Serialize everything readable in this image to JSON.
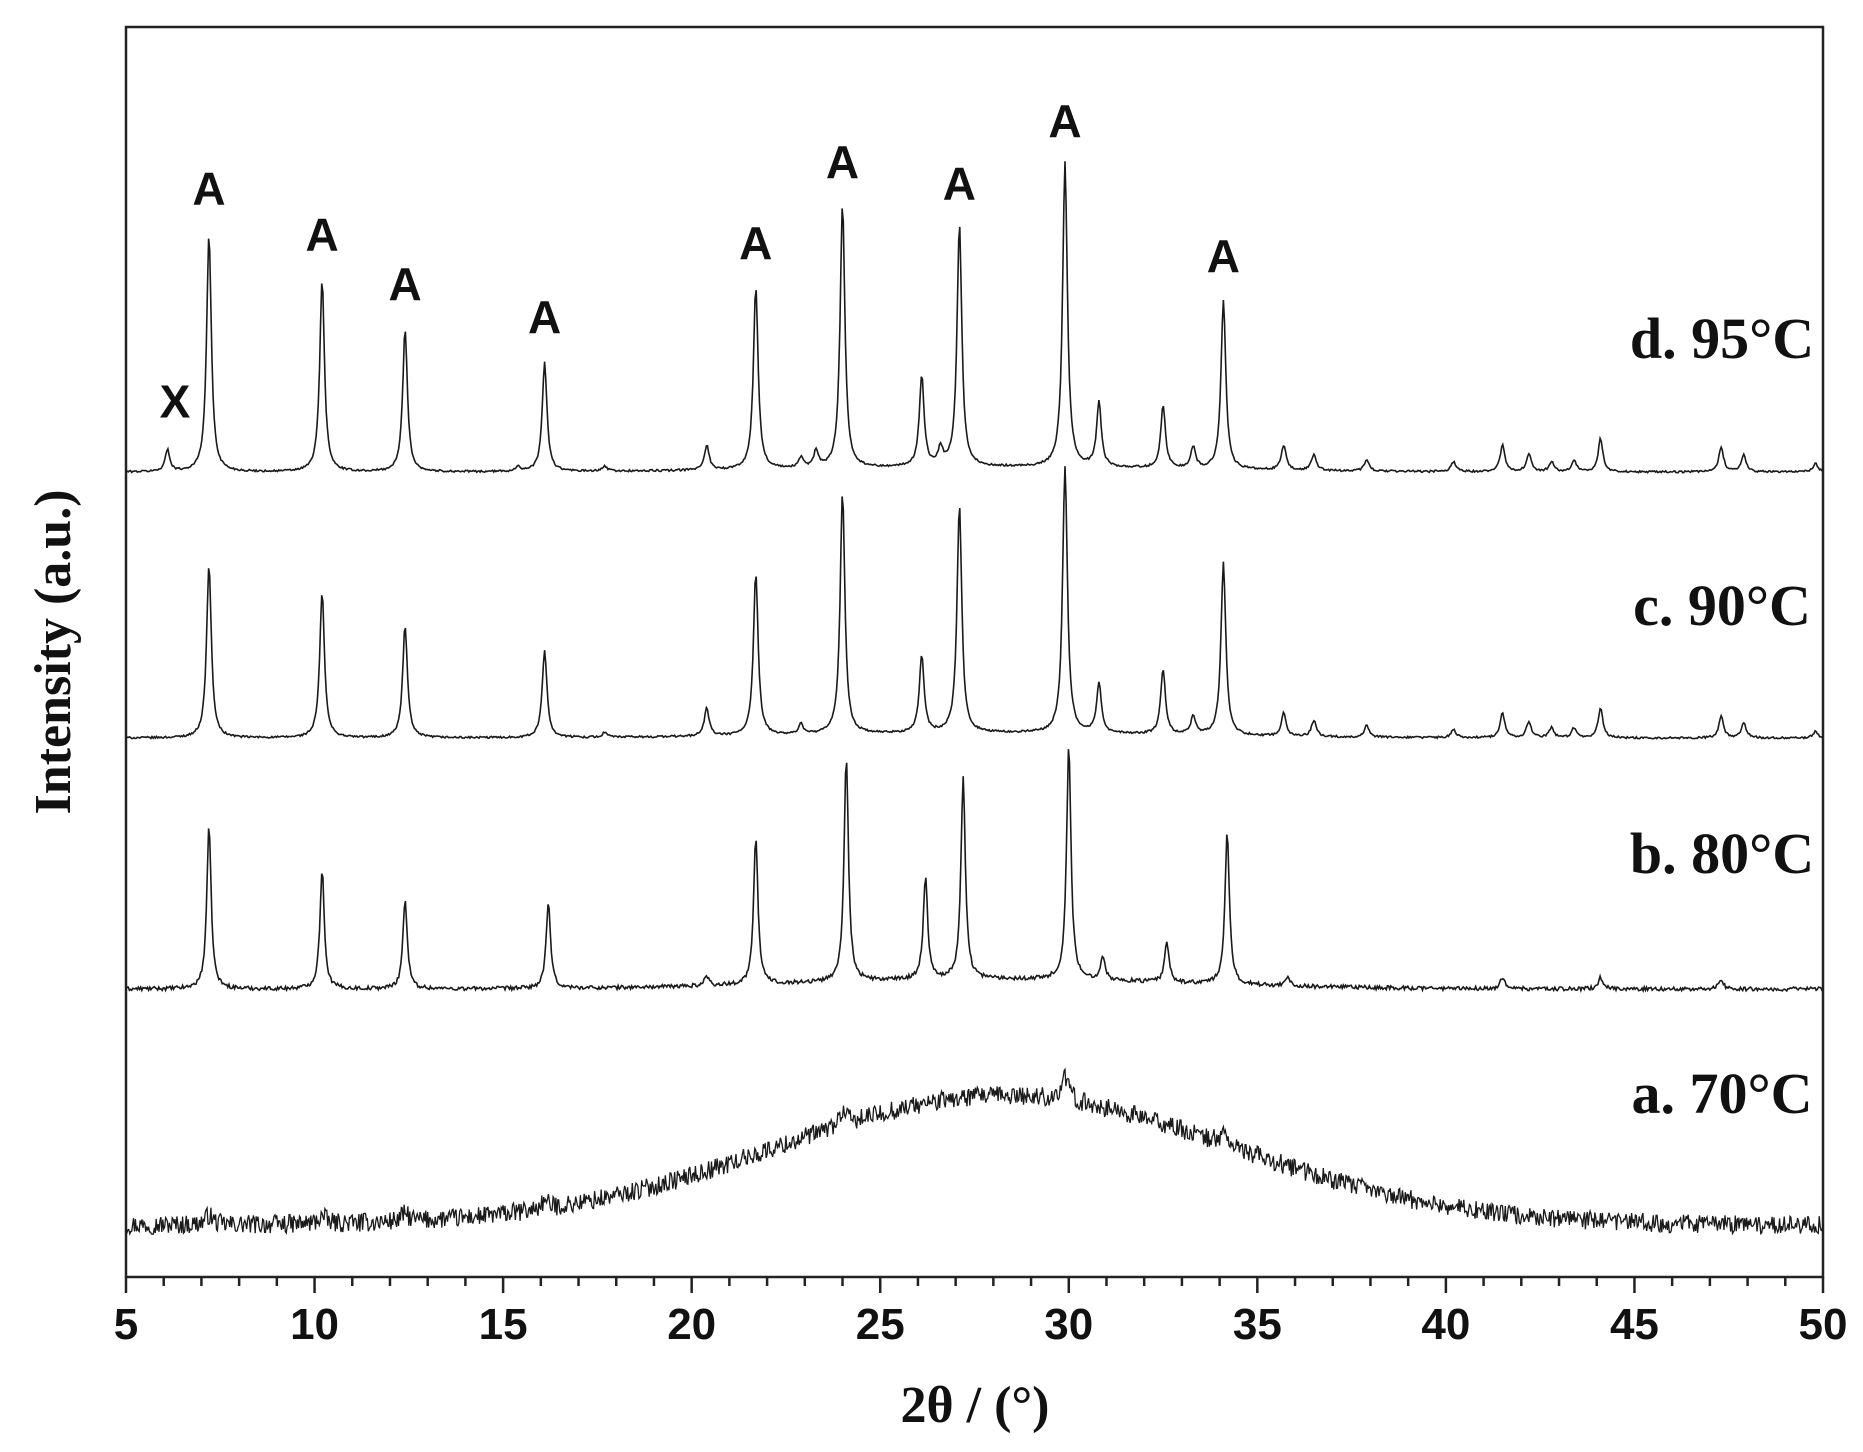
{
  "chart_data": {
    "type": "line",
    "xlabel": "2θ / (°)",
    "ylabel": "Intensity (a.u.)",
    "xlim": [
      5,
      50
    ],
    "xticks": [
      "5",
      "10",
      "15",
      "20",
      "25",
      "30",
      "35",
      "40",
      "45",
      "50"
    ],
    "x_minor_step": 1,
    "grid": false,
    "legend": "none",
    "series": [
      {
        "name": "a. 70°C",
        "kind": "amorphous",
        "baseline": 0.0,
        "hump": {
          "center": 28.3,
          "width": 6.0,
          "height": 0.68
        },
        "noise": 0.05,
        "peaks": [
          {
            "x": 7.2,
            "h": 0.05
          },
          {
            "x": 10.2,
            "h": 0.04
          },
          {
            "x": 12.4,
            "h": 0.04
          },
          {
            "x": 16.1,
            "h": 0.04
          },
          {
            "x": 24.0,
            "h": 0.07
          },
          {
            "x": 29.9,
            "h": 0.12
          },
          {
            "x": 34.1,
            "h": 0.06
          }
        ]
      },
      {
        "name": "b. 80°C",
        "kind": "crystalline",
        "baseline": 0.0,
        "hump": {
          "center": 28.0,
          "width": 5.0,
          "height": 0.06
        },
        "noise": 0.012,
        "peaks": [
          {
            "x": 7.2,
            "h": 0.98
          },
          {
            "x": 10.2,
            "h": 0.72
          },
          {
            "x": 12.4,
            "h": 0.54
          },
          {
            "x": 16.2,
            "h": 0.52
          },
          {
            "x": 20.4,
            "h": 0.06
          },
          {
            "x": 21.7,
            "h": 0.88
          },
          {
            "x": 24.1,
            "h": 1.36
          },
          {
            "x": 26.2,
            "h": 0.62
          },
          {
            "x": 27.2,
            "h": 1.22
          },
          {
            "x": 30.0,
            "h": 1.42
          },
          {
            "x": 30.9,
            "h": 0.15
          },
          {
            "x": 32.6,
            "h": 0.24
          },
          {
            "x": 34.2,
            "h": 0.92
          },
          {
            "x": 35.8,
            "h": 0.06
          },
          {
            "x": 41.5,
            "h": 0.07
          },
          {
            "x": 44.1,
            "h": 0.07
          },
          {
            "x": 47.3,
            "h": 0.06
          }
        ]
      },
      {
        "name": "c. 90°C",
        "kind": "crystalline",
        "baseline": 0.0,
        "hump": {
          "center": 28.0,
          "width": 5.0,
          "height": 0.03
        },
        "noise": 0.006,
        "peaks": [
          {
            "x": 7.2,
            "h": 1.05
          },
          {
            "x": 10.2,
            "h": 0.88
          },
          {
            "x": 12.4,
            "h": 0.68
          },
          {
            "x": 16.1,
            "h": 0.53
          },
          {
            "x": 17.7,
            "h": 0.03
          },
          {
            "x": 20.4,
            "h": 0.17
          },
          {
            "x": 21.7,
            "h": 0.98
          },
          {
            "x": 22.9,
            "h": 0.06
          },
          {
            "x": 24.0,
            "h": 1.46
          },
          {
            "x": 26.1,
            "h": 0.47
          },
          {
            "x": 27.1,
            "h": 1.38
          },
          {
            "x": 29.9,
            "h": 1.62
          },
          {
            "x": 30.8,
            "h": 0.3
          },
          {
            "x": 32.5,
            "h": 0.39
          },
          {
            "x": 33.3,
            "h": 0.11
          },
          {
            "x": 34.1,
            "h": 1.05
          },
          {
            "x": 35.7,
            "h": 0.14
          },
          {
            "x": 36.5,
            "h": 0.1
          },
          {
            "x": 37.9,
            "h": 0.07
          },
          {
            "x": 40.2,
            "h": 0.05
          },
          {
            "x": 41.5,
            "h": 0.15
          },
          {
            "x": 42.2,
            "h": 0.1
          },
          {
            "x": 42.8,
            "h": 0.06
          },
          {
            "x": 43.4,
            "h": 0.06
          },
          {
            "x": 44.1,
            "h": 0.18
          },
          {
            "x": 47.3,
            "h": 0.13
          },
          {
            "x": 47.9,
            "h": 0.09
          },
          {
            "x": 49.8,
            "h": 0.04
          }
        ]
      },
      {
        "name": "d. 95°C",
        "kind": "crystalline",
        "baseline": 0.0,
        "hump": {
          "center": 28.0,
          "width": 5.0,
          "height": 0.03
        },
        "noise": 0.006,
        "peaks": [
          {
            "x": 6.1,
            "h": 0.13
          },
          {
            "x": 7.2,
            "h": 1.44
          },
          {
            "x": 10.2,
            "h": 1.16
          },
          {
            "x": 12.4,
            "h": 0.86
          },
          {
            "x": 15.4,
            "h": 0.03
          },
          {
            "x": 16.1,
            "h": 0.66
          },
          {
            "x": 17.7,
            "h": 0.03
          },
          {
            "x": 20.4,
            "h": 0.15
          },
          {
            "x": 21.7,
            "h": 1.11
          },
          {
            "x": 22.9,
            "h": 0.06
          },
          {
            "x": 23.3,
            "h": 0.1
          },
          {
            "x": 24.0,
            "h": 1.6
          },
          {
            "x": 26.1,
            "h": 0.55
          },
          {
            "x": 26.6,
            "h": 0.1
          },
          {
            "x": 27.1,
            "h": 1.47
          },
          {
            "x": 29.9,
            "h": 1.85
          },
          {
            "x": 30.8,
            "h": 0.39
          },
          {
            "x": 32.5,
            "h": 0.38
          },
          {
            "x": 33.3,
            "h": 0.13
          },
          {
            "x": 34.1,
            "h": 1.03
          },
          {
            "x": 35.7,
            "h": 0.15
          },
          {
            "x": 36.5,
            "h": 0.1
          },
          {
            "x": 37.9,
            "h": 0.07
          },
          {
            "x": 40.2,
            "h": 0.06
          },
          {
            "x": 41.5,
            "h": 0.16
          },
          {
            "x": 42.2,
            "h": 0.11
          },
          {
            "x": 42.8,
            "h": 0.06
          },
          {
            "x": 43.4,
            "h": 0.07
          },
          {
            "x": 44.1,
            "h": 0.2
          },
          {
            "x": 47.3,
            "h": 0.15
          },
          {
            "x": 47.9,
            "h": 0.1
          },
          {
            "x": 49.8,
            "h": 0.05
          }
        ]
      }
    ],
    "annotations": [
      {
        "text": "X",
        "x": 6.3
      },
      {
        "text": "A",
        "x": 7.2
      },
      {
        "text": "A",
        "x": 10.2
      },
      {
        "text": "A",
        "x": 12.4
      },
      {
        "text": "A",
        "x": 16.1
      },
      {
        "text": "A",
        "x": 21.7
      },
      {
        "text": "A",
        "x": 24.0
      },
      {
        "text": "A",
        "x": 27.1
      },
      {
        "text": "A",
        "x": 29.9
      },
      {
        "text": "A",
        "x": 34.1
      }
    ]
  }
}
